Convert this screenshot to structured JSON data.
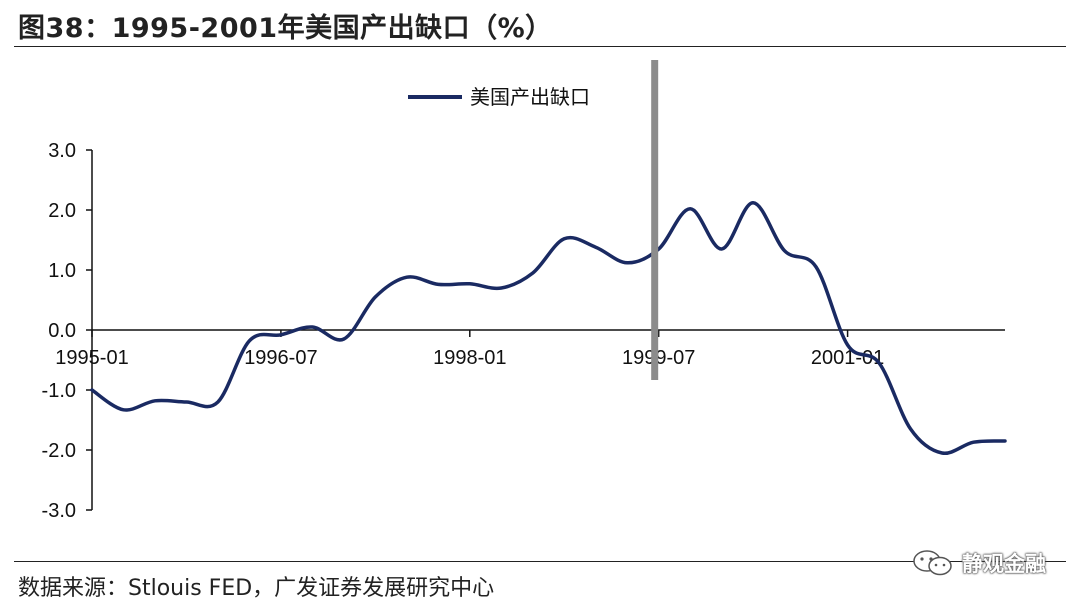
{
  "title": "图38：1995-2001年美国产出缺口（%）",
  "source": "数据来源：Stlouis FED，广发证券发展研究中心",
  "watermark": "静观金融",
  "colors": {
    "series": "#1a2a62",
    "marker": "#8c8c8c",
    "axis": "#111111"
  },
  "chart_data": {
    "type": "line",
    "title": "",
    "xlabel": "",
    "ylabel": "",
    "ylim": [
      -3.0,
      3.0
    ],
    "yticks": [
      "3.0",
      "2.0",
      "1.0",
      "0.0",
      "-1.0",
      "-2.0",
      "-3.0"
    ],
    "xticks": [
      "1995-01",
      "1996-07",
      "1998-01",
      "1999-07",
      "2001-01"
    ],
    "grid": false,
    "legend": "top-center",
    "vertical_marker": "1999-07",
    "series": [
      {
        "name": "美国产出缺口",
        "x": [
          "1995-01",
          "1995-04",
          "1995-07",
          "1995-10",
          "1996-01",
          "1996-04",
          "1996-07",
          "1996-10",
          "1997-01",
          "1997-04",
          "1997-07",
          "1997-10",
          "1998-01",
          "1998-04",
          "1998-07",
          "1998-10",
          "1999-01",
          "1999-04",
          "1999-07",
          "1999-10",
          "2000-01",
          "2000-04",
          "2000-07",
          "2000-10",
          "2001-01",
          "2001-04",
          "2001-07",
          "2001-10",
          "2002-01",
          "2002-04"
        ],
        "values": [
          -1.0,
          -1.33,
          -1.18,
          -1.2,
          -1.2,
          -0.18,
          -0.08,
          0.05,
          -0.15,
          0.55,
          0.88,
          0.76,
          0.77,
          0.7,
          0.95,
          1.52,
          1.38,
          1.12,
          1.35,
          2.02,
          1.35,
          2.12,
          1.32,
          1.05,
          -0.25,
          -0.55,
          -1.65,
          -2.05,
          -1.87,
          -1.85
        ]
      }
    ]
  }
}
